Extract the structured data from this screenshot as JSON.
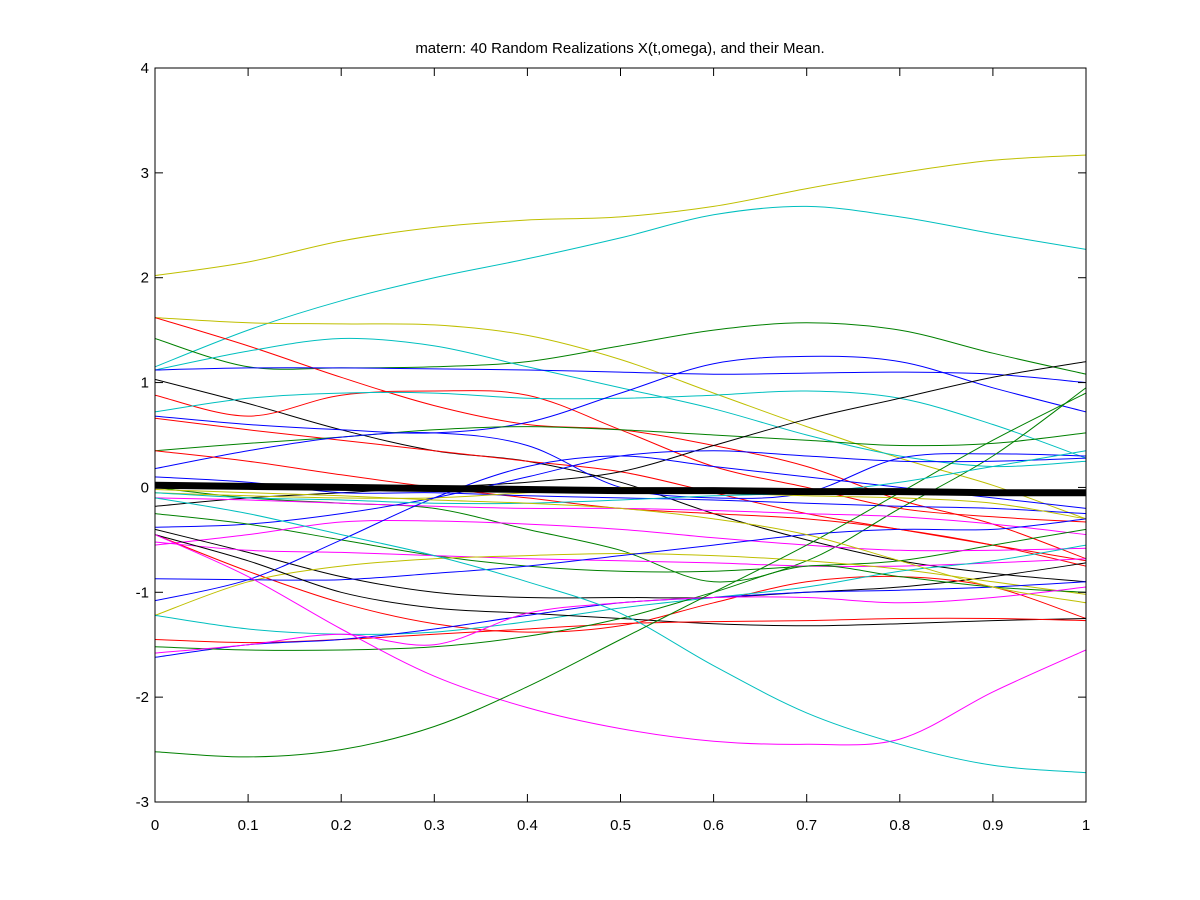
{
  "chart_data": {
    "type": "line",
    "title": "matern: 40 Random Realizations X(t,omega), and their Mean.",
    "xlabel": "",
    "ylabel": "",
    "xlim": [
      0,
      1
    ],
    "ylim": [
      -3,
      4
    ],
    "xticks": [
      0,
      0.1,
      0.2,
      0.3,
      0.4,
      0.5,
      0.6,
      0.7,
      0.8,
      0.9,
      1
    ],
    "xtick_labels": [
      "0",
      "0.1",
      "0.2",
      "0.3",
      "0.4",
      "0.5",
      "0.6",
      "0.7",
      "0.8",
      "0.9",
      "1"
    ],
    "yticks": [
      -3,
      -2,
      -1,
      0,
      1,
      2,
      3,
      4
    ],
    "ytick_labels": [
      "-3",
      "-2",
      "-1",
      "0",
      "1",
      "2",
      "3",
      "4"
    ],
    "grid": false,
    "legend": "none",
    "x": [
      0,
      0.1,
      0.2,
      0.3,
      0.4,
      0.5,
      0.6,
      0.7,
      0.8,
      0.9,
      1
    ],
    "series": [
      {
        "color": "#bfbf00",
        "values": [
          2.02,
          2.15,
          2.35,
          2.48,
          2.55,
          2.58,
          2.68,
          2.85,
          3.0,
          3.12,
          3.17
        ]
      },
      {
        "color": "#00bfbf",
        "values": [
          1.15,
          1.5,
          1.78,
          2.0,
          2.18,
          2.38,
          2.6,
          2.68,
          2.58,
          2.42,
          2.27
        ]
      },
      {
        "color": "#bfbf00",
        "values": [
          1.62,
          1.57,
          1.56,
          1.55,
          1.45,
          1.22,
          0.9,
          0.58,
          0.28,
          0.02,
          -0.3
        ]
      },
      {
        "color": "#008000",
        "values": [
          1.42,
          1.15,
          1.14,
          1.15,
          1.2,
          1.35,
          1.5,
          1.57,
          1.5,
          1.28,
          1.08
        ]
      },
      {
        "color": "#ff0000",
        "values": [
          1.62,
          1.35,
          1.05,
          0.78,
          0.6,
          0.55,
          0.4,
          0.2,
          -0.12,
          -0.35,
          -0.68
        ]
      },
      {
        "color": "#00bfbf",
        "values": [
          1.12,
          1.3,
          1.42,
          1.35,
          1.15,
          0.95,
          0.75,
          0.5,
          0.3,
          0.2,
          0.25
        ]
      },
      {
        "color": "#0000ff",
        "values": [
          1.12,
          1.14,
          1.14,
          1.13,
          1.12,
          1.1,
          1.08,
          1.09,
          1.1,
          1.08,
          1.0
        ]
      },
      {
        "color": "#000000",
        "values": [
          1.03,
          0.8,
          0.55,
          0.35,
          0.25,
          0.05,
          -0.25,
          -0.5,
          -0.7,
          -0.82,
          -0.9
        ]
      },
      {
        "color": "#ff0000",
        "values": [
          0.88,
          0.68,
          0.88,
          0.92,
          0.88,
          0.55,
          0.2,
          0.0,
          -0.2,
          -0.28,
          -0.33
        ]
      },
      {
        "color": "#00bfbf",
        "values": [
          0.72,
          0.85,
          0.9,
          0.9,
          0.85,
          0.85,
          0.88,
          0.92,
          0.85,
          0.6,
          0.28
        ]
      },
      {
        "color": "#0000ff",
        "values": [
          0.68,
          0.6,
          0.55,
          0.52,
          0.62,
          0.9,
          1.18,
          1.25,
          1.2,
          0.95,
          0.72
        ]
      },
      {
        "color": "#ff0000",
        "values": [
          0.66,
          0.55,
          0.45,
          0.35,
          0.25,
          0.15,
          -0.05,
          -0.25,
          -0.4,
          -0.55,
          -0.7
        ]
      },
      {
        "color": "#008000",
        "values": [
          0.35,
          0.42,
          0.48,
          0.55,
          0.58,
          0.55,
          0.5,
          0.45,
          0.4,
          0.42,
          0.52
        ]
      },
      {
        "color": "#0000ff",
        "values": [
          0.18,
          0.35,
          0.48,
          0.52,
          0.4,
          0.0,
          -0.1,
          -0.05,
          0.28,
          0.32,
          0.3
        ]
      },
      {
        "color": "#ff0000",
        "values": [
          0.35,
          0.25,
          0.12,
          0.0,
          -0.1,
          -0.2,
          -0.25,
          -0.3,
          -0.4,
          -0.55,
          -0.75
        ]
      },
      {
        "color": "#008000",
        "values": [
          0.0,
          -0.1,
          -0.15,
          -0.2,
          -0.4,
          -0.6,
          -0.9,
          -0.7,
          -0.2,
          0.3,
          0.95
        ]
      },
      {
        "color": "#000000",
        "values": [
          -0.18,
          -0.1,
          -0.05,
          0.0,
          0.05,
          0.15,
          0.4,
          0.65,
          0.85,
          1.05,
          1.2
        ]
      },
      {
        "color": "#0000ff",
        "values": [
          0.1,
          0.05,
          -0.05,
          -0.05,
          -0.08,
          -0.1,
          -0.12,
          -0.15,
          -0.18,
          -0.2,
          -0.25
        ]
      },
      {
        "color": "#bfbf00",
        "values": [
          -0.05,
          -0.08,
          -0.1,
          -0.1,
          -0.05,
          0.0,
          -0.05,
          -0.08,
          -0.1,
          -0.15,
          -0.3
        ]
      },
      {
        "color": "#ff00ff",
        "values": [
          -0.1,
          -0.12,
          -0.15,
          -0.18,
          -0.2,
          -0.2,
          -0.22,
          -0.25,
          -0.28,
          -0.35,
          -0.45
        ]
      },
      {
        "color": "#0000ff",
        "values": [
          -0.38,
          -0.35,
          -0.25,
          -0.1,
          0.1,
          0.3,
          0.35,
          0.3,
          0.25,
          0.25,
          0.28
        ]
      },
      {
        "color": "#008000",
        "values": [
          -0.25,
          -0.35,
          -0.5,
          -0.65,
          -0.75,
          -0.8,
          -0.8,
          -0.75,
          -0.7,
          -0.55,
          -0.4
        ]
      },
      {
        "color": "#ff00ff",
        "values": [
          -0.55,
          -0.45,
          -0.33,
          -0.32,
          -0.35,
          -0.4,
          -0.48,
          -0.55,
          -0.6,
          -0.6,
          -0.58
        ]
      },
      {
        "color": "#000000",
        "values": [
          -0.4,
          -0.62,
          -0.85,
          -1.0,
          -1.05,
          -1.05,
          -1.05,
          -1.0,
          -0.95,
          -0.85,
          -0.72
        ]
      },
      {
        "color": "#ff0000",
        "values": [
          -0.45,
          -0.8,
          -1.1,
          -1.3,
          -1.38,
          -1.32,
          -1.1,
          -0.9,
          -0.85,
          -0.95,
          -1.25
        ]
      },
      {
        "color": "#ff00ff",
        "values": [
          -0.52,
          -0.6,
          -0.62,
          -0.65,
          -0.68,
          -0.7,
          -0.72,
          -0.75,
          -0.75,
          -0.72,
          -0.68
        ]
      },
      {
        "color": "#bfbf00",
        "values": [
          -1.22,
          -0.9,
          -0.75,
          -0.68,
          -0.65,
          -0.63,
          -0.65,
          -0.7,
          -0.78,
          -0.9,
          -1.02
        ]
      },
      {
        "color": "#0000ff",
        "values": [
          -0.87,
          -0.88,
          -0.88,
          -0.82,
          -0.75,
          -0.65,
          -0.55,
          -0.45,
          -0.4,
          -0.4,
          -0.3
        ]
      },
      {
        "color": "#0000ff",
        "values": [
          -1.08,
          -0.88,
          -0.5,
          -0.1,
          0.2,
          0.3,
          0.2,
          0.1,
          0.0,
          -0.1,
          -0.2
        ]
      },
      {
        "color": "#00bfbf",
        "values": [
          -1.22,
          -1.35,
          -1.4,
          -1.38,
          -1.28,
          -1.15,
          -1.05,
          -0.95,
          -0.8,
          -0.7,
          -0.55
        ]
      },
      {
        "color": "#000000",
        "values": [
          -0.45,
          -0.7,
          -1.0,
          -1.15,
          -1.2,
          -1.25,
          -1.3,
          -1.32,
          -1.3,
          -1.27,
          -1.25
        ]
      },
      {
        "color": "#ff0000",
        "values": [
          -1.45,
          -1.48,
          -1.45,
          -1.4,
          -1.35,
          -1.3,
          -1.28,
          -1.27,
          -1.25,
          -1.25,
          -1.27
        ]
      },
      {
        "color": "#0000ff",
        "values": [
          -1.62,
          -1.5,
          -1.45,
          -1.35,
          -1.22,
          -1.1,
          -1.05,
          -1.0,
          -0.98,
          -0.95,
          -0.9
        ]
      },
      {
        "color": "#008000",
        "values": [
          -1.52,
          -1.55,
          -1.55,
          -1.52,
          -1.42,
          -1.25,
          -1.0,
          -0.75,
          -0.85,
          -0.95,
          -1.0
        ]
      },
      {
        "color": "#ff00ff",
        "values": [
          -1.58,
          -1.5,
          -1.4,
          -1.5,
          -1.2,
          -1.1,
          -1.05,
          -1.05,
          -1.1,
          -1.05,
          -0.95
        ]
      },
      {
        "color": "#ff00ff",
        "values": [
          -0.45,
          -0.85,
          -1.35,
          -1.8,
          -2.1,
          -2.3,
          -2.42,
          -2.45,
          -2.4,
          -1.95,
          -1.55
        ]
      },
      {
        "color": "#00bfbf",
        "values": [
          -0.1,
          -0.25,
          -0.45,
          -0.65,
          -0.9,
          -1.2,
          -1.7,
          -2.15,
          -2.45,
          -2.65,
          -2.72
        ]
      },
      {
        "color": "#008000",
        "values": [
          -2.52,
          -2.57,
          -2.5,
          -2.28,
          -1.9,
          -1.45,
          -1.0,
          -0.55,
          -0.05,
          0.45,
          0.9
        ]
      },
      {
        "color": "#00bfbf",
        "values": [
          -0.05,
          -0.1,
          -0.12,
          -0.15,
          -0.15,
          -0.12,
          -0.08,
          -0.05,
          0.05,
          0.2,
          0.35
        ]
      },
      {
        "color": "#bfbf00",
        "values": [
          -0.02,
          -0.05,
          -0.08,
          -0.12,
          -0.15,
          -0.2,
          -0.3,
          -0.45,
          -0.7,
          -0.95,
          -1.1
        ]
      }
    ],
    "mean": {
      "color": "#000000",
      "values": [
        0.02,
        0.01,
        0.0,
        -0.01,
        -0.02,
        -0.03,
        -0.03,
        -0.04,
        -0.04,
        -0.05,
        -0.05
      ]
    }
  }
}
